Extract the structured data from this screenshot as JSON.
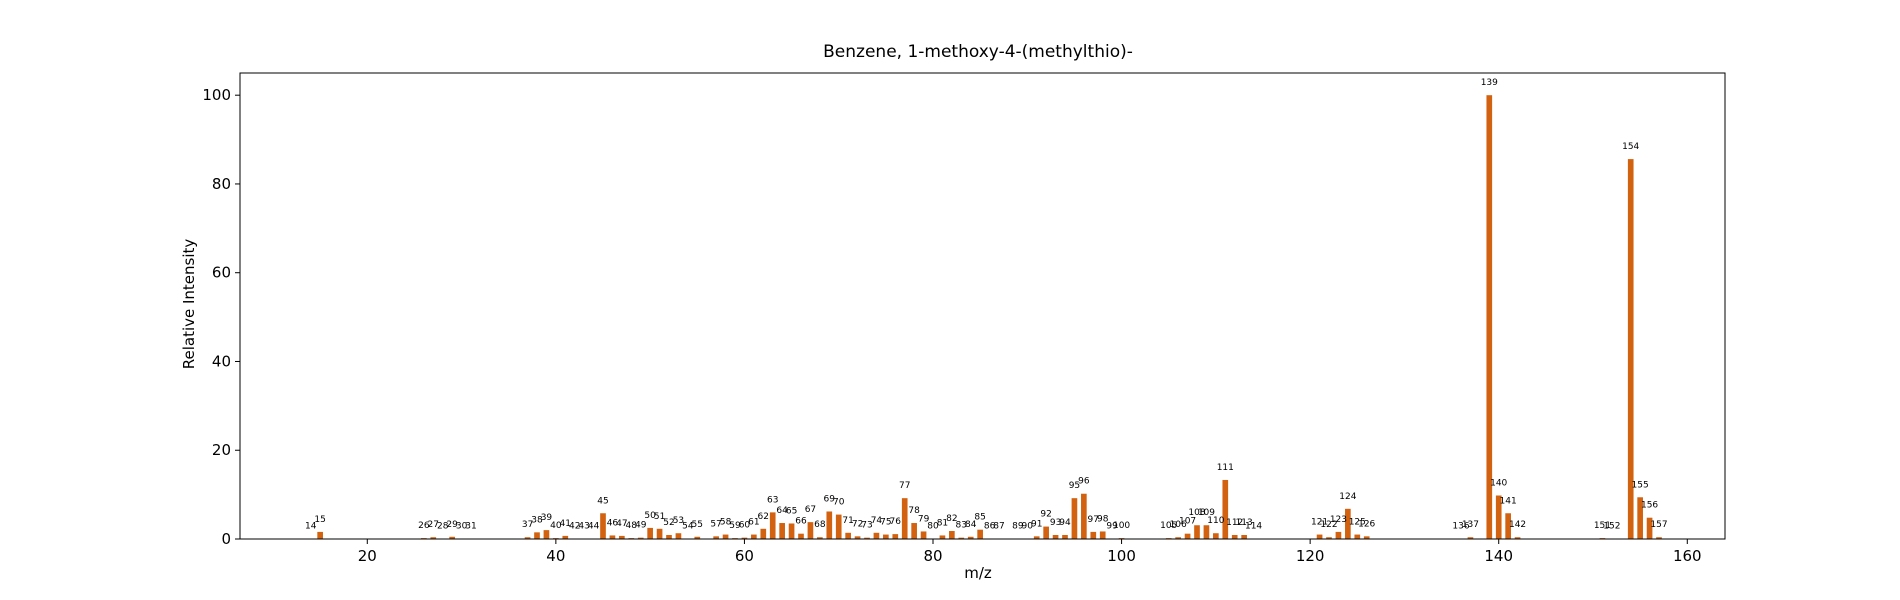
{
  "chart_data": {
    "type": "bar",
    "title": "Benzene, 1-methoxy-4-(methylthio)-",
    "xlabel": "m/z",
    "ylabel": "Relative Intensity",
    "xlim": [
      6.5,
      164
    ],
    "ylim": [
      0,
      105
    ],
    "xticks": [
      20,
      40,
      60,
      80,
      100,
      120,
      140,
      160
    ],
    "yticks": [
      0,
      20,
      40,
      60,
      80,
      100
    ],
    "grid": false,
    "bar_color": "#d2620f",
    "x": [
      14,
      15,
      26,
      27,
      28,
      29,
      30,
      31,
      37,
      38,
      39,
      40,
      41,
      42,
      43,
      44,
      45,
      46,
      47,
      48,
      49,
      50,
      51,
      52,
      53,
      54,
      55,
      57,
      58,
      59,
      60,
      61,
      62,
      63,
      64,
      65,
      66,
      67,
      68,
      69,
      70,
      71,
      72,
      73,
      74,
      75,
      76,
      77,
      78,
      79,
      80,
      81,
      82,
      83,
      84,
      85,
      86,
      87,
      89,
      90,
      91,
      92,
      93,
      94,
      95,
      96,
      97,
      98,
      99,
      100,
      105,
      106,
      107,
      108,
      109,
      110,
      111,
      112,
      113,
      114,
      121,
      122,
      123,
      124,
      125,
      126,
      136,
      137,
      139,
      140,
      141,
      142,
      151,
      152,
      154,
      155,
      156,
      157
    ],
    "values": [
      0.1,
      1.6,
      0.2,
      0.4,
      0.1,
      0.5,
      0.1,
      0.1,
      0.4,
      1.5,
      2.0,
      0.2,
      0.7,
      0.1,
      0.1,
      0.1,
      5.8,
      0.8,
      0.7,
      0.2,
      0.3,
      2.5,
      2.3,
      0.9,
      1.3,
      0.1,
      0.5,
      0.6,
      1.0,
      0.2,
      0.3,
      1.0,
      2.3,
      6.0,
      3.6,
      3.5,
      1.2,
      3.8,
      0.4,
      6.2,
      5.5,
      1.4,
      0.6,
      0.3,
      1.4,
      1.0,
      1.1,
      9.2,
      3.6,
      1.7,
      0.1,
      0.8,
      1.8,
      0.3,
      0.5,
      2.1,
      0.1,
      0.1,
      0.1,
      0.1,
      0.6,
      2.8,
      0.9,
      0.9,
      9.2,
      10.2,
      1.6,
      1.7,
      0.1,
      0.2,
      0.2,
      0.4,
      1.2,
      3.1,
      3.1,
      1.3,
      13.3,
      0.9,
      0.9,
      0.1,
      1.0,
      0.4,
      1.6,
      6.8,
      1.0,
      0.6,
      0.1,
      0.4,
      100.0,
      9.8,
      5.8,
      0.4,
      0.2,
      0.1,
      85.6,
      9.4,
      4.8,
      0.4
    ]
  }
}
